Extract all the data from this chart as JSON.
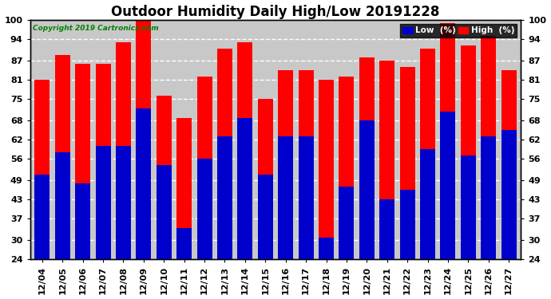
{
  "title": "Outdoor Humidity Daily High/Low 20191228",
  "copyright": "Copyright 2019 Cartronics.com",
  "legend_low": "Low  (%)",
  "legend_high": "High  (%)",
  "categories": [
    "12/04",
    "12/05",
    "12/06",
    "12/07",
    "12/08",
    "12/09",
    "12/10",
    "12/11",
    "12/12",
    "12/13",
    "12/14",
    "12/15",
    "12/16",
    "12/17",
    "12/18",
    "12/19",
    "12/20",
    "12/21",
    "12/22",
    "12/23",
    "12/24",
    "12/25",
    "12/26",
    "12/27"
  ],
  "high_values": [
    81,
    89,
    86,
    86,
    93,
    100,
    76,
    69,
    82,
    91,
    93,
    75,
    84,
    84,
    81,
    82,
    88,
    87,
    85,
    91,
    99,
    92,
    95,
    84
  ],
  "low_values": [
    51,
    58,
    48,
    60,
    60,
    72,
    54,
    34,
    56,
    63,
    69,
    51,
    63,
    63,
    31,
    47,
    68,
    43,
    46,
    59,
    71,
    57,
    63,
    65
  ],
  "ylim_min": 24,
  "ylim_max": 100,
  "yticks": [
    24,
    30,
    37,
    43,
    49,
    56,
    62,
    68,
    75,
    81,
    87,
    94,
    100
  ],
  "high_color": "#ff0000",
  "low_color": "#0000cc",
  "bg_color": "#ffffff",
  "plot_bg_color": "#c8c8c8",
  "grid_color": "#ffffff",
  "title_fontsize": 12,
  "tick_fontsize": 8,
  "bar_width": 0.75
}
